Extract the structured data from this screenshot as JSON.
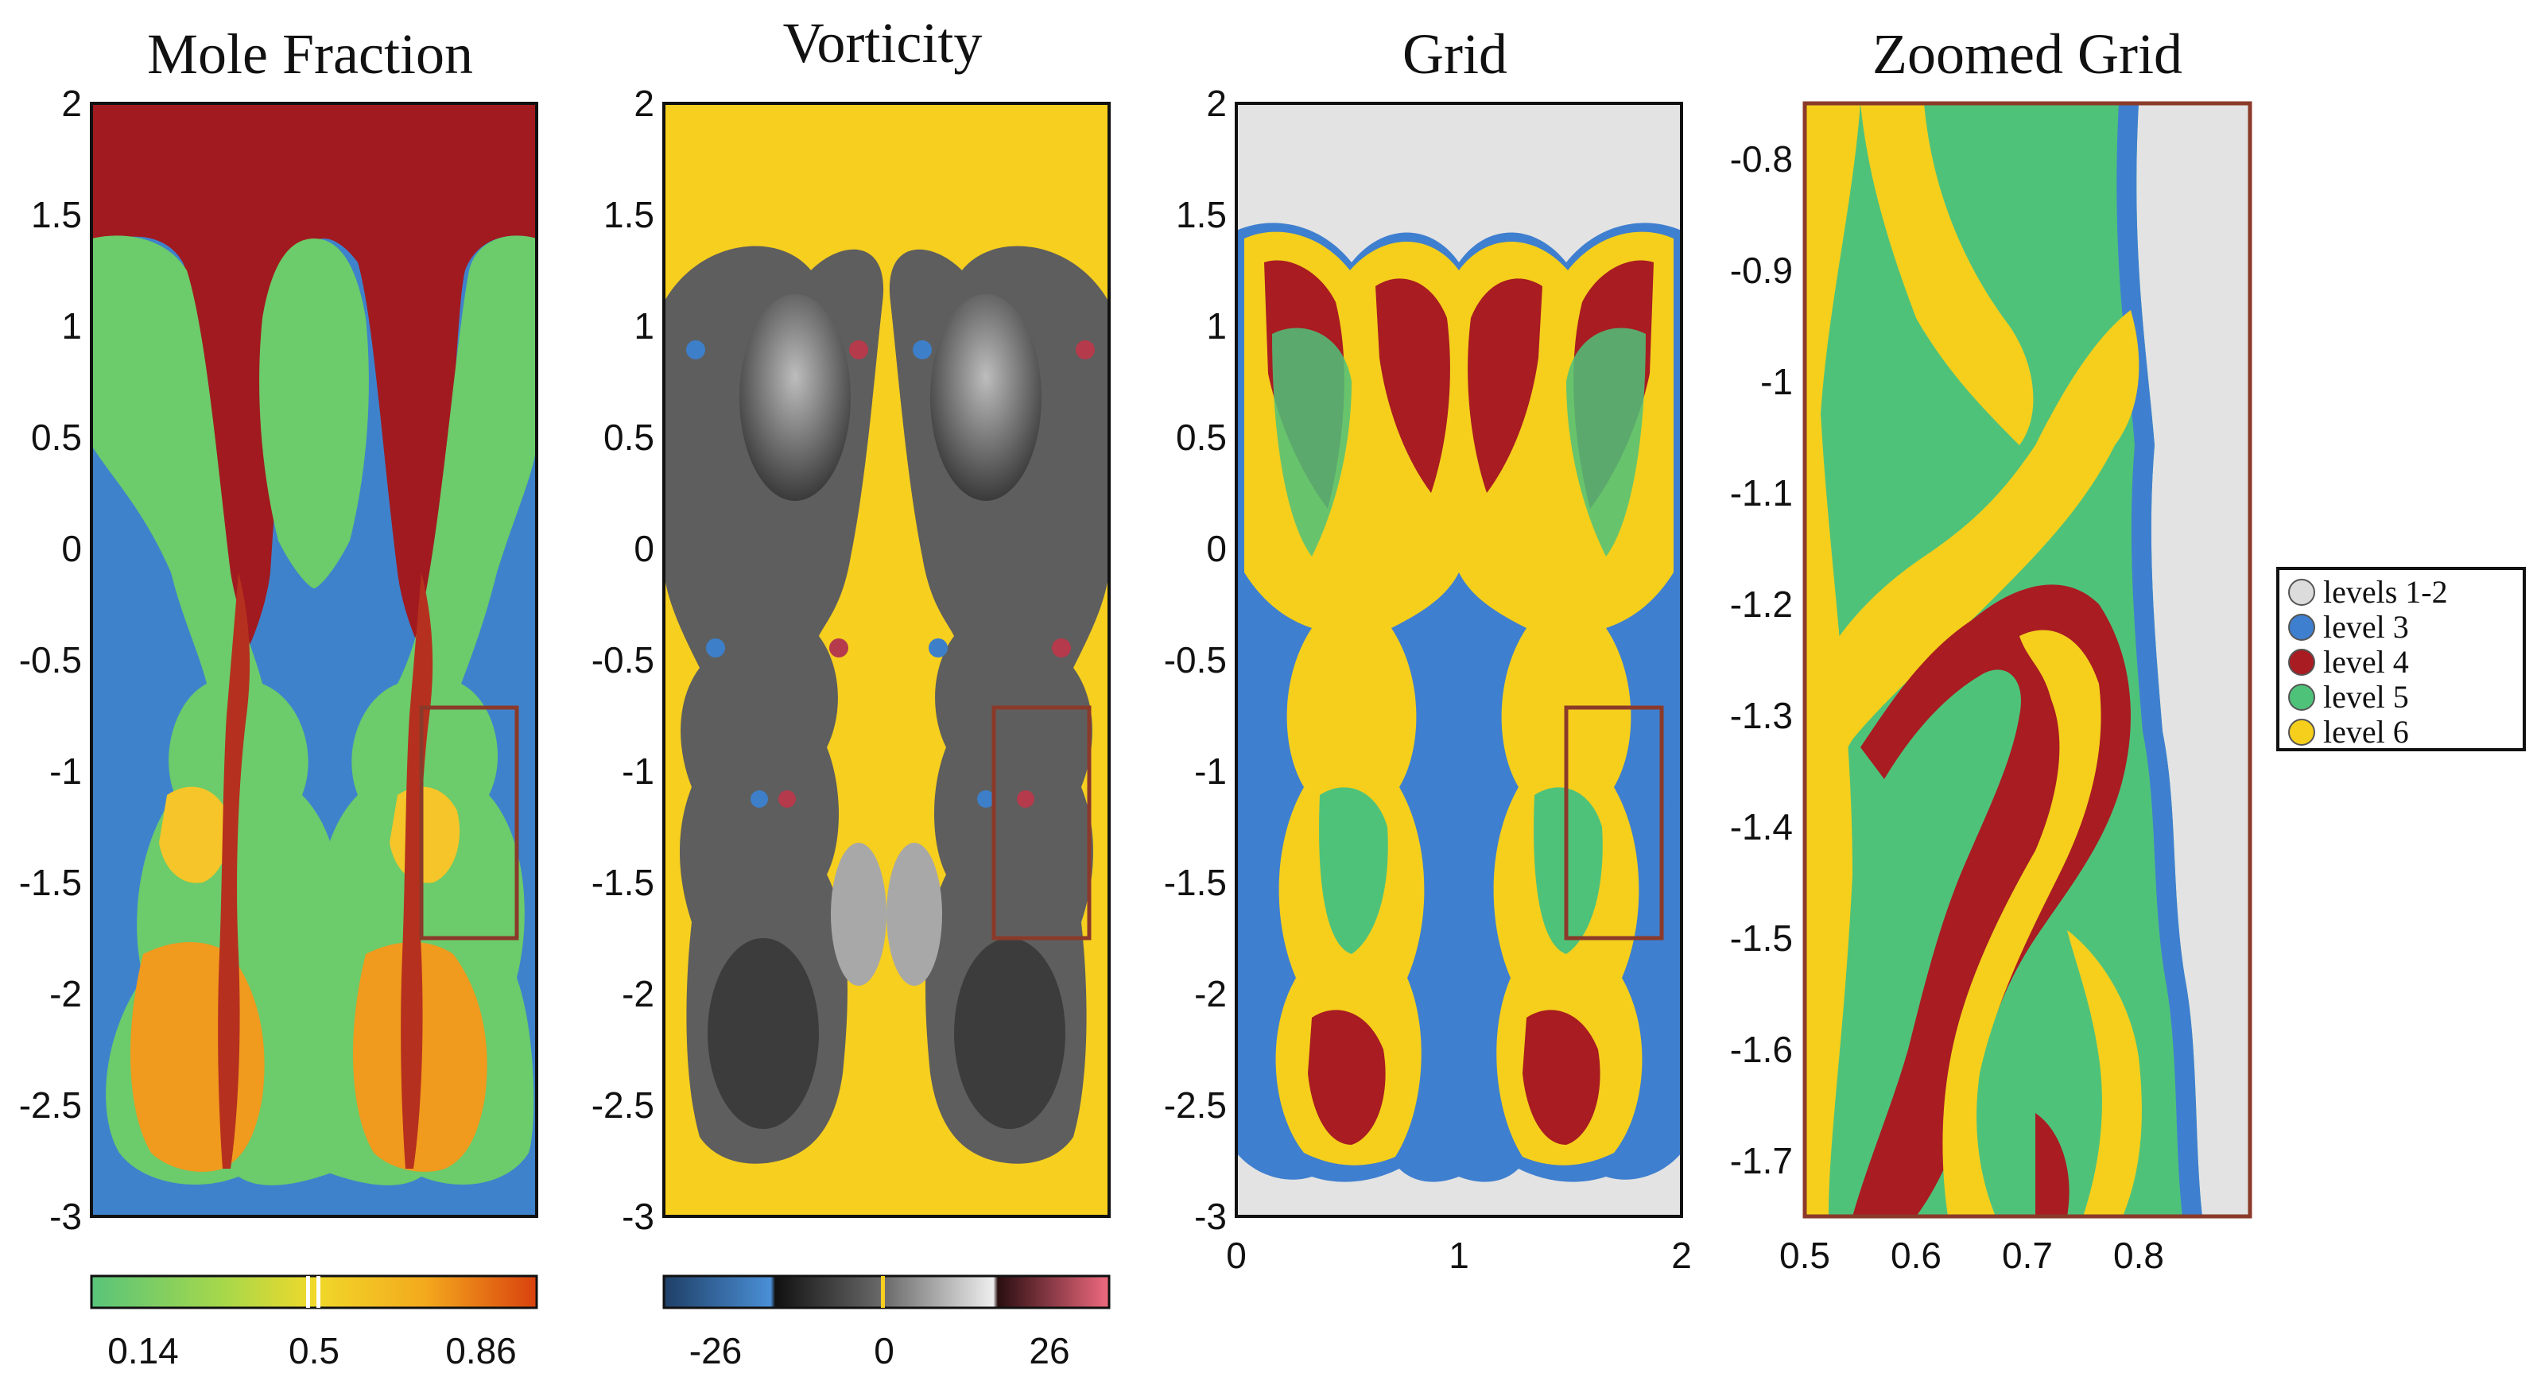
{
  "panels": [
    {
      "title": "Mole Fraction",
      "yticks": [
        "2",
        "1.5",
        "1",
        "0.5",
        "0",
        "-0.5",
        "-1",
        "-1.5",
        "-2",
        "-2.5",
        "-3"
      ],
      "colorbar": [
        "0.14",
        "0.5",
        "0.86"
      ]
    },
    {
      "title": "Vorticity",
      "yticks": [
        "2",
        "1.5",
        "1",
        "0.5",
        "0",
        "-0.5",
        "-1",
        "-1.5",
        "-2",
        "-2.5",
        "-3"
      ],
      "colorbar": [
        "-26",
        "0",
        "26"
      ]
    },
    {
      "title": "Grid",
      "yticks": [
        "2",
        "1.5",
        "1",
        "0.5",
        "0",
        "-0.5",
        "-1",
        "-1.5",
        "-2",
        "-2.5",
        "-3"
      ],
      "xticks": [
        "0",
        "1",
        "2"
      ]
    },
    {
      "title": "Zoomed Grid",
      "yticks": [
        "-0.8",
        "-0.9",
        "-1",
        "-1.1",
        "-1.2",
        "-1.3",
        "-1.4",
        "-1.5",
        "-1.6",
        "-1.7"
      ],
      "xticks": [
        "0.5",
        "0.6",
        "0.7",
        "0.8"
      ]
    }
  ],
  "legend": [
    {
      "label": "levels 1-2",
      "color": "#dcdcdc"
    },
    {
      "label": "level 3",
      "color": "#3f7fcf"
    },
    {
      "label": "level 4",
      "color": "#a81c22"
    },
    {
      "label": "level 5",
      "color": "#4fc27a"
    },
    {
      "label": "level 6",
      "color": "#f5cf1c"
    }
  ],
  "colors": {
    "mole_bg": "#3f82cc",
    "mole_top": "#a11a1f",
    "mole_green": "#6ccb6a",
    "mole_orange": "#f09a1e",
    "vort_bg": "#f6cf1f",
    "vort_gray": "#6b6b6b",
    "grid_bg": "#e3e3e3",
    "zoom_box": "#8b3a2a"
  }
}
